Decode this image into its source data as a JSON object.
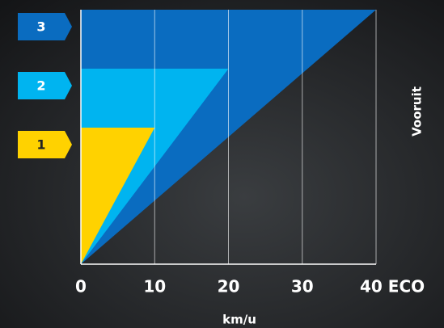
{
  "chart_data": {
    "type": "speed-range",
    "categories": [
      "1",
      "2",
      "3"
    ],
    "values": [
      10,
      20,
      40
    ],
    "colors": [
      "#ffd200",
      "#00b4f0",
      "#0a6cc0"
    ],
    "xlim": [
      0,
      40
    ],
    "xticks": [
      0,
      10,
      20,
      30,
      {
        "value": 40,
        "label": "40 ECO"
      }
    ],
    "xlabel": "km/u",
    "side_label": "Vooruit",
    "grid": true
  }
}
